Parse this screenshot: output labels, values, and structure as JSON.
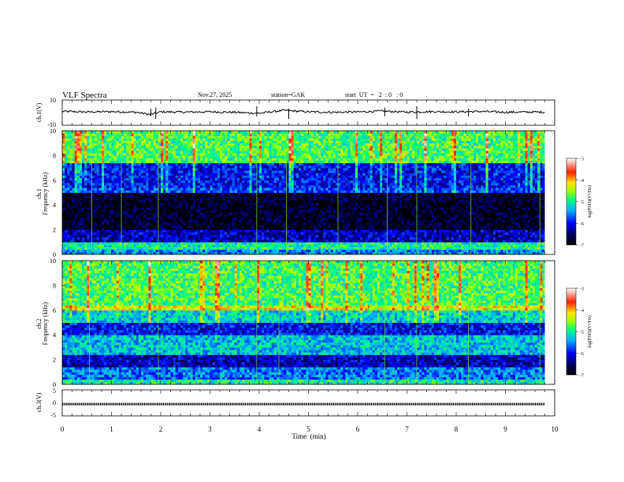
{
  "header": {
    "title": "VLF  Spectra",
    "date": "Nov.27, 2025",
    "station": "station=GAK",
    "start": "start  UT  =   2  : 0   : 0"
  },
  "colorbar": {
    "label": "log(PSD)(V²/Hz)",
    "ticks": [
      "-3",
      "-4",
      "-5",
      "-6",
      "-7"
    ]
  },
  "chart_data": [
    {
      "type": "line",
      "name": "ch1_waveform",
      "ylabel": "ch.1(V)",
      "ylim": [
        -10,
        10
      ],
      "y_ticks": [
        "10",
        "-10"
      ],
      "x": [
        0,
        0.5,
        1,
        1.5,
        1.8,
        2,
        2.5,
        3,
        3.5,
        4,
        4.5,
        5,
        5.5,
        6,
        6.5,
        7,
        7.5,
        8,
        8.5,
        9,
        9.5,
        9.8
      ],
      "y": [
        1,
        0.5,
        0.8,
        0.3,
        -1.5,
        0.6,
        0.4,
        0.7,
        0.2,
        -0.5,
        1.8,
        0.6,
        0.3,
        0.5,
        1.2,
        0.4,
        0.8,
        0.6,
        0.9,
        0.3,
        0.5,
        0.4
      ]
    },
    {
      "type": "heatmap",
      "name": "ch1_spectrogram",
      "ylabel": "ch.1\nFrequency (kHz)",
      "ylim": [
        0,
        10
      ],
      "y_ticks": [
        "0",
        "2",
        "4",
        "6",
        "8",
        "10"
      ],
      "xlim": [
        0,
        9.8
      ],
      "color_scale": "log(PSD)(V²/Hz), -7 to -3",
      "band_levels": [
        {
          "f": [
            0,
            0.5
          ],
          "level": -5.5
        },
        {
          "f": [
            0.5,
            1.0
          ],
          "level": -5.0
        },
        {
          "f": [
            1.0,
            2.0
          ],
          "level": -6.2
        },
        {
          "f": [
            2.0,
            5.0
          ],
          "level": -6.8
        },
        {
          "f": [
            5.0,
            5.5
          ],
          "level": -5.8
        },
        {
          "f": [
            5.5,
            7.5
          ],
          "level": -6.0
        },
        {
          "f": [
            7.5,
            10.0
          ],
          "level": -4.8
        }
      ]
    },
    {
      "type": "heatmap",
      "name": "ch2_spectrogram",
      "ylabel": "ch.2\nFrequency (kHz)",
      "ylim": [
        0,
        10
      ],
      "y_ticks": [
        "0",
        "2",
        "4",
        "6",
        "8",
        "10"
      ],
      "xlim": [
        0,
        9.8
      ],
      "color_scale": "log(PSD)(V²/Hz), -7 to -3",
      "band_levels": [
        {
          "f": [
            0,
            0.5
          ],
          "level": -5.0
        },
        {
          "f": [
            0.5,
            1.5
          ],
          "level": -5.6
        },
        {
          "f": [
            1.5,
            2.5
          ],
          "level": -6.2
        },
        {
          "f": [
            2.5,
            4.0
          ],
          "level": -5.3
        },
        {
          "f": [
            4.0,
            5.0
          ],
          "level": -6.0
        },
        {
          "f": [
            5.0,
            6.0
          ],
          "level": -5.2
        },
        {
          "f": [
            6.0,
            6.5
          ],
          "level": -4.3
        },
        {
          "f": [
            6.5,
            10.0
          ],
          "level": -4.8
        }
      ]
    },
    {
      "type": "line",
      "name": "ch3_waveform",
      "ylabel": "ch.3(V)",
      "ylim": [
        -5,
        5
      ],
      "y_ticks": [
        "5",
        "0",
        "-5"
      ],
      "x": [
        0,
        9.8
      ],
      "y": [
        -0.5,
        -0.5
      ]
    }
  ],
  "x_axis": {
    "label": "Time  (min)",
    "range": [
      0,
      10
    ],
    "ticks": [
      "0",
      "1",
      "2",
      "3",
      "4",
      "5",
      "6",
      "7",
      "8",
      "9",
      "10"
    ]
  }
}
